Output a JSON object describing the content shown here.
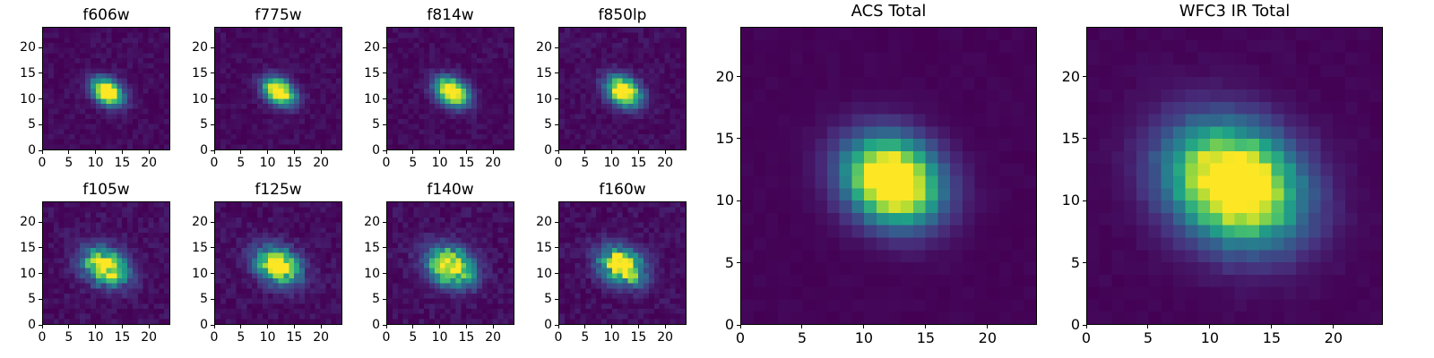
{
  "figure": {
    "background": "#ffffff",
    "text_color": "#000000"
  },
  "colors": {
    "viridis_stops": [
      {
        "t": 0.0,
        "hex": "#440154"
      },
      {
        "t": 0.14,
        "hex": "#46327e"
      },
      {
        "t": 0.29,
        "hex": "#365c8d"
      },
      {
        "t": 0.43,
        "hex": "#277f8e"
      },
      {
        "t": 0.57,
        "hex": "#1fa187"
      },
      {
        "t": 0.71,
        "hex": "#4ac16d"
      },
      {
        "t": 0.86,
        "hex": "#a0da39"
      },
      {
        "t": 1.0,
        "hex": "#fde725"
      }
    ]
  },
  "chart_data": [
    {
      "id": "f606w",
      "type": "heatmap",
      "title": "f606w",
      "colormap": "viridis",
      "grid": 24,
      "xlim": [
        0,
        24
      ],
      "ylim": [
        0,
        24
      ],
      "xticks": [
        0,
        5,
        10,
        15,
        20
      ],
      "yticks": [
        0,
        5,
        10,
        15,
        20
      ],
      "model": {
        "cx": 12.2,
        "cy": 11.3,
        "sx": 2.2,
        "sy": 1.5,
        "angle": -35,
        "peak": 1.25,
        "speckle": 0.15,
        "bg": 0.07,
        "seed": 11
      }
    },
    {
      "id": "f775w",
      "type": "heatmap",
      "title": "f775w",
      "colormap": "viridis",
      "grid": 24,
      "xlim": [
        0,
        24
      ],
      "ylim": [
        0,
        24
      ],
      "xticks": [
        0,
        5,
        10,
        15,
        20
      ],
      "yticks": [
        0,
        5,
        10,
        15,
        20
      ],
      "model": {
        "cx": 12.1,
        "cy": 11.4,
        "sx": 2.2,
        "sy": 1.5,
        "angle": -35,
        "peak": 1.25,
        "speckle": 0.15,
        "bg": 0.07,
        "seed": 12
      }
    },
    {
      "id": "f814w",
      "type": "heatmap",
      "title": "f814w",
      "colormap": "viridis",
      "grid": 24,
      "xlim": [
        0,
        24
      ],
      "ylim": [
        0,
        24
      ],
      "xticks": [
        0,
        5,
        10,
        15,
        20
      ],
      "yticks": [
        0,
        5,
        10,
        15,
        20
      ],
      "model": {
        "cx": 12.3,
        "cy": 11.3,
        "sx": 2.3,
        "sy": 1.6,
        "angle": -35,
        "peak": 1.25,
        "speckle": 0.15,
        "bg": 0.07,
        "seed": 13
      }
    },
    {
      "id": "f850lp",
      "type": "heatmap",
      "title": "f850lp",
      "colormap": "viridis",
      "grid": 24,
      "xlim": [
        0,
        24
      ],
      "ylim": [
        0,
        24
      ],
      "xticks": [
        0,
        5,
        10,
        15,
        20
      ],
      "yticks": [
        0,
        5,
        10,
        15,
        20
      ],
      "model": {
        "cx": 12.2,
        "cy": 11.4,
        "sx": 2.4,
        "sy": 1.7,
        "angle": -35,
        "peak": 1.25,
        "speckle": 0.18,
        "bg": 0.08,
        "seed": 14
      }
    },
    {
      "id": "f105w",
      "type": "heatmap",
      "title": "f105w",
      "colormap": "viridis",
      "grid": 24,
      "xlim": [
        0,
        24
      ],
      "ylim": [
        0,
        24
      ],
      "xticks": [
        0,
        5,
        10,
        15,
        20
      ],
      "yticks": [
        0,
        5,
        10,
        15,
        20
      ],
      "model": {
        "cx": 11.8,
        "cy": 11.3,
        "sx": 3.0,
        "sy": 2.2,
        "angle": -30,
        "peak": 1.1,
        "speckle": 0.35,
        "bg": 0.09,
        "seed": 21
      }
    },
    {
      "id": "f125w",
      "type": "heatmap",
      "title": "f125w",
      "colormap": "viridis",
      "grid": 24,
      "xlim": [
        0,
        24
      ],
      "ylim": [
        0,
        24
      ],
      "xticks": [
        0,
        5,
        10,
        15,
        20
      ],
      "yticks": [
        0,
        5,
        10,
        15,
        20
      ],
      "model": {
        "cx": 11.9,
        "cy": 11.4,
        "sx": 3.0,
        "sy": 2.2,
        "angle": -30,
        "peak": 1.1,
        "speckle": 0.35,
        "bg": 0.09,
        "seed": 22
      }
    },
    {
      "id": "f140w",
      "type": "heatmap",
      "title": "f140w",
      "colormap": "viridis",
      "grid": 24,
      "xlim": [
        0,
        24
      ],
      "ylim": [
        0,
        24
      ],
      "xticks": [
        0,
        5,
        10,
        15,
        20
      ],
      "yticks": [
        0,
        5,
        10,
        15,
        20
      ],
      "model": {
        "cx": 12.0,
        "cy": 11.3,
        "sx": 3.1,
        "sy": 2.3,
        "angle": -30,
        "peak": 1.2,
        "speckle": 0.33,
        "bg": 0.09,
        "seed": 23
      }
    },
    {
      "id": "f160w",
      "type": "heatmap",
      "title": "f160w",
      "colormap": "viridis",
      "grid": 24,
      "xlim": [
        0,
        24
      ],
      "ylim": [
        0,
        24
      ],
      "xticks": [
        0,
        5,
        10,
        15,
        20
      ],
      "yticks": [
        0,
        5,
        10,
        15,
        20
      ],
      "model": {
        "cx": 11.9,
        "cy": 11.4,
        "sx": 3.0,
        "sy": 2.2,
        "angle": -30,
        "peak": 1.15,
        "speckle": 0.35,
        "bg": 0.09,
        "seed": 24
      }
    },
    {
      "id": "acs-total",
      "type": "heatmap",
      "title": "ACS Total",
      "colormap": "viridis",
      "grid": 24,
      "xlim": [
        0,
        24
      ],
      "ylim": [
        0,
        24
      ],
      "xticks": [
        0,
        5,
        10,
        15,
        20
      ],
      "yticks": [
        0,
        5,
        10,
        15,
        20
      ],
      "model": {
        "cx": 12.3,
        "cy": 11.6,
        "sx": 2.7,
        "sy": 2.2,
        "angle": -30,
        "peak": 1.35,
        "speckle": 0.05,
        "bg": 0.02,
        "seed": 31
      }
    },
    {
      "id": "wfc3-ir-total",
      "type": "heatmap",
      "title": "WFC3 IR Total",
      "colormap": "viridis",
      "grid": 24,
      "xlim": [
        0,
        24
      ],
      "ylim": [
        0,
        24
      ],
      "xticks": [
        0,
        5,
        10,
        15,
        20
      ],
      "yticks": [
        0,
        5,
        10,
        15,
        20
      ],
      "model": {
        "cx": 12.0,
        "cy": 11.3,
        "sx": 3.8,
        "sy": 3.0,
        "angle": -30,
        "peak": 1.3,
        "speckle": 0.08,
        "bg": 0.025,
        "seed": 32
      }
    }
  ]
}
